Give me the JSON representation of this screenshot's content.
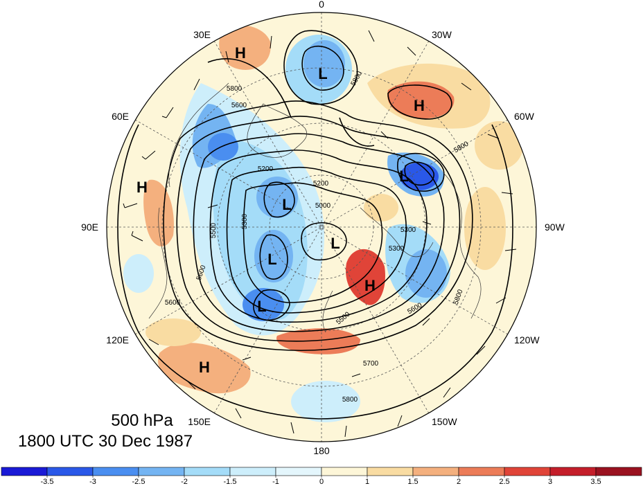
{
  "title": {
    "level": "500 hPa",
    "time": "1800 UTC 30 Dec 1987"
  },
  "longitude_labels": [
    "0",
    "30W",
    "60W",
    "90W",
    "120W",
    "150W",
    "180",
    "150E",
    "120E",
    "90E",
    "60E",
    "30E"
  ],
  "pressure_centers": [
    {
      "type": "H"
    },
    {
      "type": "H"
    },
    {
      "type": "H"
    },
    {
      "type": "H"
    },
    {
      "type": "H"
    },
    {
      "type": "L"
    },
    {
      "type": "L"
    },
    {
      "type": "L"
    },
    {
      "type": "L"
    },
    {
      "type": "L"
    },
    {
      "type": "L"
    }
  ],
  "contour_labels": [
    "5800",
    "5800",
    "5800",
    "5600",
    "5500",
    "5300",
    "5200",
    "5000",
    "5700",
    "5800",
    "5600",
    "5500",
    "5300",
    "5200",
    "5800",
    "5600",
    "5600",
    "5300"
  ],
  "colorbar": {
    "tick_labels": [
      "-3.5",
      "-3",
      "-2.5",
      "-2",
      "-1.5",
      "-1",
      "0",
      "1",
      "1.5",
      "2",
      "2.5",
      "3",
      "3.5"
    ],
    "colors": [
      "#1a1ad6",
      "#2a58e8",
      "#4a8ef0",
      "#74b4f2",
      "#a4dcf8",
      "#cdeefb",
      "#e4f6fc",
      "#fdf6d8",
      "#f9dca2",
      "#f4b07e",
      "#ec7c58",
      "#e04438",
      "#c41e2a",
      "#9a1220"
    ]
  }
}
